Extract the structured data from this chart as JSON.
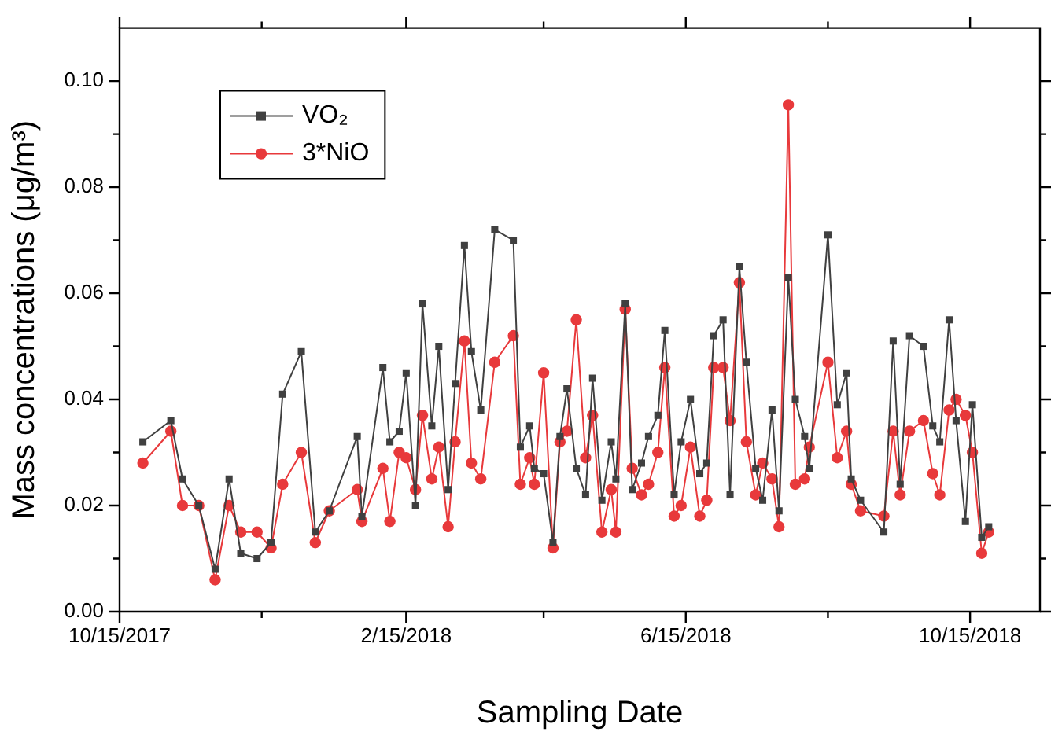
{
  "chart_data": {
    "type": "line",
    "xlabel": "Sampling Date",
    "ylabel": "Mass concentrations (μg/m³)",
    "x": [
      "2017-10-25",
      "2017-11-06",
      "2017-11-11",
      "2017-11-18",
      "2017-11-25",
      "2017-12-01",
      "2017-12-06",
      "2017-12-13",
      "2017-12-19",
      "2017-12-24",
      "2018-01-01",
      "2018-01-07",
      "2018-01-13",
      "2018-01-25",
      "2018-01-27",
      "2018-02-05",
      "2018-02-08",
      "2018-02-12",
      "2018-02-15",
      "2018-02-19",
      "2018-02-22",
      "2018-02-26",
      "2018-03-01",
      "2018-03-05",
      "2018-03-08",
      "2018-03-12",
      "2018-03-15",
      "2018-03-19",
      "2018-03-25",
      "2018-04-02",
      "2018-04-05",
      "2018-04-09",
      "2018-04-11",
      "2018-04-15",
      "2018-04-19",
      "2018-04-22",
      "2018-04-25",
      "2018-04-29",
      "2018-05-03",
      "2018-05-06",
      "2018-05-10",
      "2018-05-14",
      "2018-05-16",
      "2018-05-20",
      "2018-05-23",
      "2018-05-27",
      "2018-05-30",
      "2018-06-03",
      "2018-06-06",
      "2018-06-10",
      "2018-06-13",
      "2018-06-17",
      "2018-06-21",
      "2018-06-24",
      "2018-06-27",
      "2018-07-01",
      "2018-07-04",
      "2018-07-08",
      "2018-07-11",
      "2018-07-15",
      "2018-07-18",
      "2018-07-22",
      "2018-07-25",
      "2018-07-29",
      "2018-08-01",
      "2018-08-05",
      "2018-08-07",
      "2018-08-15",
      "2018-08-19",
      "2018-08-23",
      "2018-08-25",
      "2018-08-29",
      "2018-09-08",
      "2018-09-12",
      "2018-09-15",
      "2018-09-19",
      "2018-09-25",
      "2018-09-29",
      "2018-10-02",
      "2018-10-06",
      "2018-10-09",
      "2018-10-13",
      "2018-10-16",
      "2018-10-20",
      "2018-10-23"
    ],
    "series": [
      {
        "name": "VO₂",
        "color": "#404040",
        "marker": "square",
        "values": [
          0.032,
          0.036,
          0.025,
          0.02,
          0.008,
          0.025,
          0.011,
          0.01,
          0.013,
          0.041,
          0.049,
          0.015,
          0.019,
          0.033,
          0.018,
          0.046,
          0.032,
          0.034,
          0.045,
          0.02,
          0.058,
          0.035,
          0.05,
          0.023,
          0.043,
          0.069,
          0.049,
          0.038,
          0.072,
          0.07,
          0.031,
          0.035,
          0.027,
          0.026,
          0.013,
          0.033,
          0.042,
          0.027,
          0.022,
          0.044,
          0.021,
          0.032,
          0.025,
          0.058,
          0.023,
          0.028,
          0.033,
          0.037,
          0.053,
          0.022,
          0.032,
          0.04,
          0.026,
          0.028,
          0.052,
          0.055,
          0.022,
          0.065,
          0.047,
          0.027,
          0.021,
          0.038,
          0.019,
          0.063,
          0.04,
          0.033,
          0.027,
          0.071,
          0.039,
          0.045,
          0.025,
          0.021,
          0.015,
          0.051,
          0.024,
          0.052,
          0.05,
          0.035,
          0.032,
          0.055,
          0.036,
          0.017,
          0.039,
          0.014,
          0.016
        ]
      },
      {
        "name": "3*NiO",
        "color": "#e8393b",
        "marker": "circle",
        "values": [
          0.028,
          0.034,
          0.02,
          0.02,
          0.006,
          0.02,
          0.015,
          0.015,
          0.012,
          0.024,
          0.03,
          0.013,
          0.019,
          0.023,
          0.017,
          0.027,
          0.017,
          0.03,
          0.029,
          0.023,
          0.037,
          0.025,
          0.031,
          0.016,
          0.032,
          0.051,
          0.028,
          0.025,
          0.047,
          0.052,
          0.024,
          0.029,
          0.024,
          0.045,
          0.012,
          0.032,
          0.034,
          0.055,
          0.029,
          0.037,
          0.015,
          0.023,
          0.015,
          0.057,
          0.027,
          0.022,
          0.024,
          0.03,
          0.046,
          0.018,
          0.02,
          0.031,
          0.018,
          0.021,
          0.046,
          0.046,
          0.036,
          0.062,
          0.032,
          0.022,
          0.028,
          0.025,
          0.016,
          0.0955,
          0.024,
          0.025,
          0.031,
          0.047,
          0.029,
          0.034,
          0.024,
          0.019,
          0.018,
          0.034,
          0.022,
          0.034,
          0.036,
          0.026,
          0.022,
          0.038,
          0.04,
          0.037,
          0.03,
          0.011,
          0.015
        ]
      }
    ],
    "xlim": [
      "2017-10-15",
      "2018-11-14"
    ],
    "xticks": [
      {
        "value": "2017-10-15",
        "label": "10/15/2017"
      },
      {
        "value": "2017-12-15",
        "label": null
      },
      {
        "value": "2018-02-15",
        "label": "2/15/2018"
      },
      {
        "value": "2018-04-15",
        "label": null
      },
      {
        "value": "2018-06-15",
        "label": "6/15/2018"
      },
      {
        "value": "2018-08-15",
        "label": null
      },
      {
        "value": "2018-10-15",
        "label": "10/15/2018"
      }
    ],
    "ylim": [
      0,
      0.11
    ],
    "yticks": [
      {
        "value": 0,
        "label": "0.00"
      },
      {
        "value": 0.01,
        "label": null
      },
      {
        "value": 0.02,
        "label": "0.02"
      },
      {
        "value": 0.03,
        "label": null
      },
      {
        "value": 0.04,
        "label": "0.04"
      },
      {
        "value": 0.05,
        "label": null
      },
      {
        "value": 0.06,
        "label": "0.06"
      },
      {
        "value": 0.07,
        "label": null
      },
      {
        "value": 0.08,
        "label": "0.08"
      },
      {
        "value": 0.09,
        "label": null
      },
      {
        "value": 0.1,
        "label": "0.10"
      }
    ],
    "grid": false,
    "legend": "top left",
    "line_style": "solid"
  }
}
